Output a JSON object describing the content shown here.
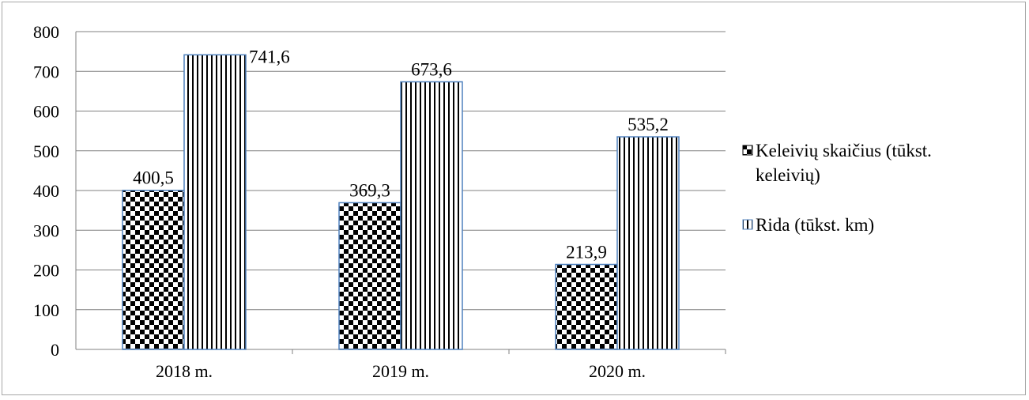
{
  "chart_data": {
    "type": "bar",
    "categories": [
      "2018 m.",
      "2019 m.",
      "2020 m."
    ],
    "series": [
      {
        "name": "Keleivių skaičius (tūkst. keleivių)",
        "values": [
          400.5,
          369.3,
          213.9
        ],
        "labels": [
          "400,5",
          "369,3",
          "213,9"
        ],
        "pattern": "checkerboard"
      },
      {
        "name": "Rida (tūkst. km)",
        "values": [
          741.6,
          673.6,
          535.2
        ],
        "labels": [
          "741,6",
          "673,6",
          "535,2"
        ],
        "pattern": "vertical-stripes"
      }
    ],
    "ylim": [
      0,
      800
    ],
    "yticks": [
      0,
      100,
      200,
      300,
      400,
      500,
      600,
      700,
      800
    ],
    "xlabel": "",
    "ylabel": "",
    "title": "",
    "grid": true,
    "legend_position": "right",
    "colors": {
      "bar_fill": "#000000",
      "bar_background": "#ffffff",
      "bar_border": "#4f81bd",
      "grid": "#808080",
      "axis": "#808080"
    }
  },
  "legend": {
    "line1_a": "Keleivių skaičius (tūkst.",
    "line1_b": "keleivių)",
    "line2": "Rida (tūkst. km)"
  }
}
